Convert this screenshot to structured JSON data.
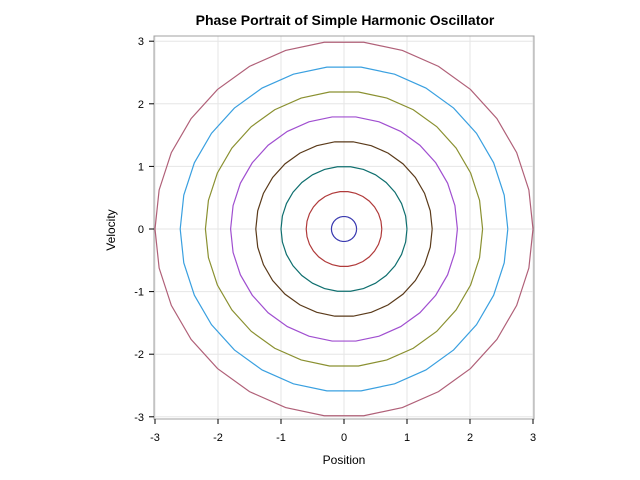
{
  "chart_data": {
    "type": "line",
    "title": "Phase Portrait of Simple Harmonic Oscillator",
    "xlabel": "Position",
    "ylabel": "Velocity",
    "xlim": [
      -3,
      3
    ],
    "ylim": [
      -3,
      3
    ],
    "xticks": [
      "-3",
      "-2",
      "-1",
      "0",
      "1",
      "2",
      "3"
    ],
    "yticks": [
      "-3",
      "-2",
      "-1",
      "0",
      "1",
      "2",
      "3"
    ],
    "grid": true,
    "legend": "none",
    "series": [
      {
        "amplitude": 0.2,
        "color": "#3a3ab0"
      },
      {
        "amplitude": 0.6,
        "color": "#b03a3a"
      },
      {
        "amplitude": 1.0,
        "color": "#0f6f6f"
      },
      {
        "amplitude": 1.4,
        "color": "#5a3a1a"
      },
      {
        "amplitude": 1.8,
        "color": "#a04fd0"
      },
      {
        "amplitude": 2.2,
        "color": "#8a9030"
      },
      {
        "amplitude": 2.6,
        "color": "#3aa0e0"
      },
      {
        "amplitude": 3.0,
        "color": "#b06078"
      }
    ]
  }
}
